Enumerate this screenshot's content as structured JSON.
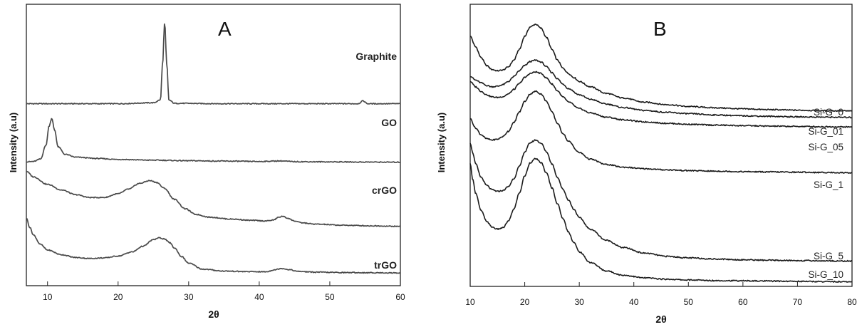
{
  "chart_data": [
    {
      "panel": "A",
      "type": "line",
      "xlabel": "2θ",
      "ylabel": "Intensity (a.u)",
      "xlim": [
        7,
        60
      ],
      "xticks": [
        10,
        20,
        30,
        40,
        50,
        60
      ],
      "y_ticks_shown": false,
      "grid": false,
      "series": [
        {
          "name": "Graphite",
          "x": [
            7,
            15,
            20,
            25,
            26.0,
            26.3,
            26.6,
            26.9,
            27.2,
            28,
            35,
            45,
            54,
            54.7,
            55.4,
            60
          ],
          "y": [
            97,
            97,
            97,
            97.5,
            99,
            118,
            140,
            118,
            99,
            97.2,
            97,
            97,
            97,
            98.5,
            97,
            97
          ]
        },
        {
          "name": "GO",
          "x": [
            7,
            8,
            9,
            9.8,
            10.2,
            10.6,
            11.0,
            11.5,
            12.5,
            14,
            17,
            20,
            25,
            30,
            35,
            40,
            43,
            45,
            50,
            55,
            60
          ],
          "y": [
            66,
            66.2,
            67.5,
            75,
            85,
            89,
            83,
            74,
            70,
            68.5,
            67.8,
            67.3,
            66.9,
            66.6,
            66.4,
            66.2,
            66.5,
            66.1,
            66,
            65.9,
            65.8
          ]
        },
        {
          "name": "crGO",
          "x": [
            7,
            8,
            10,
            12,
            14,
            16,
            18,
            20,
            21.5,
            23,
            24.5,
            25.5,
            26.5,
            28,
            29.5,
            31,
            33,
            36,
            39,
            41,
            42,
            42.8,
            43.3,
            44,
            45,
            46,
            48,
            52,
            56,
            60
          ],
          "y": [
            61,
            58,
            54,
            51,
            48.5,
            47,
            47,
            49,
            51.5,
            54.5,
            56,
            55,
            52,
            46,
            41,
            38,
            36.5,
            35.5,
            34.8,
            34.5,
            35,
            36.5,
            37,
            36,
            34.5,
            33.5,
            32.8,
            32.2,
            31.9,
            31.6
          ]
        },
        {
          "name": "trGO",
          "x": [
            7,
            7.5,
            8,
            9,
            10,
            12,
            14,
            16,
            18,
            20,
            22,
            23.5,
            25,
            25.8,
            26.5,
            27.3,
            28,
            29,
            30,
            32,
            35,
            38,
            41,
            42.2,
            43.2,
            44.2,
            45.5,
            48,
            52,
            56,
            60
          ],
          "y": [
            36,
            31,
            27,
            22,
            19,
            16.5,
            15,
            14.5,
            14.8,
            15.8,
            18,
            21,
            24.5,
            25.5,
            25,
            23,
            20,
            15.5,
            12,
            8.8,
            7.8,
            7.5,
            7.4,
            8.5,
            9.2,
            8.6,
            7.6,
            7.2,
            7,
            6.9,
            6.8
          ]
        }
      ]
    },
    {
      "panel": "B",
      "type": "line",
      "xlabel": "2θ",
      "ylabel": "Intensity (a.u)",
      "xlim": [
        10,
        80
      ],
      "xticks": [
        10,
        20,
        30,
        40,
        50,
        60,
        70,
        80
      ],
      "y_ticks_shown": false,
      "grid": false,
      "series": [
        {
          "name": "Si-G_0",
          "x": [
            10,
            11,
            12,
            13,
            14,
            15,
            16,
            17,
            18,
            19,
            20,
            21,
            22,
            23,
            24,
            25,
            26,
            27,
            28,
            29,
            30,
            32,
            35,
            38,
            42,
            46,
            50,
            55,
            60,
            65,
            70,
            75,
            80
          ],
          "y": [
            94,
            90,
            86,
            83,
            81.5,
            81,
            81.3,
            82.5,
            85,
            89,
            94,
            97.5,
            98.5,
            97,
            93.5,
            89,
            85,
            82,
            80,
            78.5,
            77,
            75,
            72.5,
            70.8,
            69.2,
            68.3,
            67.6,
            67.1,
            66.7,
            66.4,
            66.2,
            66,
            65.9
          ]
        },
        {
          "name": "Si-G_01",
          "x": [
            10,
            11,
            12,
            13,
            14,
            15,
            16,
            17,
            18,
            19,
            20,
            21,
            22,
            23,
            24,
            25,
            26,
            27,
            28,
            30,
            32,
            35,
            38,
            42,
            46,
            50,
            55,
            60,
            65,
            70,
            75,
            80
          ],
          "y": [
            79,
            77.5,
            76.5,
            75.5,
            75,
            75.2,
            75.8,
            77,
            78.8,
            81,
            83,
            84.5,
            85,
            84.3,
            82.5,
            80.3,
            78,
            76,
            74.3,
            72,
            70.3,
            68.5,
            67.2,
            66.1,
            65.4,
            64.9,
            64.4,
            64.1,
            63.9,
            63.7,
            63.6,
            63.5
          ]
        },
        {
          "name": "Si-G_05",
          "x": [
            10,
            11,
            12,
            13,
            14,
            15,
            16,
            17,
            18,
            19,
            20,
            21,
            22,
            23,
            24,
            25,
            26,
            27,
            28,
            30,
            32,
            35,
            38,
            42,
            46,
            50,
            55,
            60,
            65,
            70,
            75,
            80
          ],
          "y": [
            77,
            75,
            73.3,
            72,
            71.2,
            71,
            71.3,
            72.3,
            74,
            76.2,
            78.5,
            80,
            80.6,
            80,
            78.3,
            76,
            73.5,
            71.2,
            69.3,
            66.8,
            65.2,
            63.6,
            62.6,
            61.8,
            61.3,
            60.9,
            60.6,
            60.4,
            60.2,
            60.1,
            60,
            59.9
          ]
        },
        {
          "name": "Si-G_1",
          "x": [
            10,
            11,
            12,
            13,
            14,
            15,
            16,
            17,
            18,
            19,
            20,
            21,
            22,
            23,
            24,
            25,
            26,
            27,
            28,
            30,
            32,
            35,
            38,
            42,
            46,
            50,
            55,
            60,
            65,
            70,
            75,
            80
          ],
          "y": [
            63,
            59.5,
            57,
            55.5,
            55,
            55.3,
            56.3,
            58.3,
            61.5,
            65.5,
            69.5,
            72.3,
            73.3,
            72.3,
            69.5,
            65.5,
            61.3,
            57.5,
            54.5,
            50.3,
            47.8,
            45.8,
            44.8,
            44.2,
            43.8,
            43.5,
            43.3,
            43.1,
            43,
            42.9,
            42.8,
            42.7
          ]
        },
        {
          "name": "Si-G_5",
          "x": [
            10,
            10.5,
            11,
            12,
            13,
            14,
            15,
            16,
            17,
            18,
            19,
            20,
            21,
            22,
            23,
            24,
            25,
            26,
            27,
            28,
            29,
            30,
            32,
            35,
            38,
            42,
            46,
            50,
            55,
            60,
            65,
            70,
            75,
            80
          ],
          "y": [
            54,
            50,
            46,
            41,
            38,
            36.3,
            35.7,
            36,
            37.5,
            40.5,
            45,
            50.5,
            54,
            55,
            53.8,
            50.5,
            46,
            41,
            36.5,
            32.5,
            29,
            25.8,
            21.5,
            17.3,
            14.6,
            12.5,
            11.3,
            10.7,
            10.3,
            10,
            9.8,
            9.7,
            9.6,
            9.5
          ]
        },
        {
          "name": "Si-G_10",
          "x": [
            10,
            10.5,
            11,
            12,
            13,
            14,
            15,
            16,
            17,
            18,
            19,
            20,
            21,
            22,
            23,
            24,
            25,
            26,
            27,
            28,
            29,
            30,
            32,
            35,
            38,
            42,
            46,
            50,
            55,
            60,
            65,
            70,
            75,
            80
          ],
          "y": [
            46,
            40,
            35,
            28.5,
            24.5,
            22.3,
            21.5,
            22,
            24.5,
            29,
            35,
            41.5,
            46.5,
            48,
            46.5,
            42.5,
            37,
            31,
            25.5,
            20.5,
            16.5,
            13,
            9,
            5.8,
            4.2,
            3.2,
            2.7,
            2.4,
            2.2,
            2.1,
            2,
            1.9,
            1.8,
            1.7
          ]
        }
      ]
    }
  ]
}
